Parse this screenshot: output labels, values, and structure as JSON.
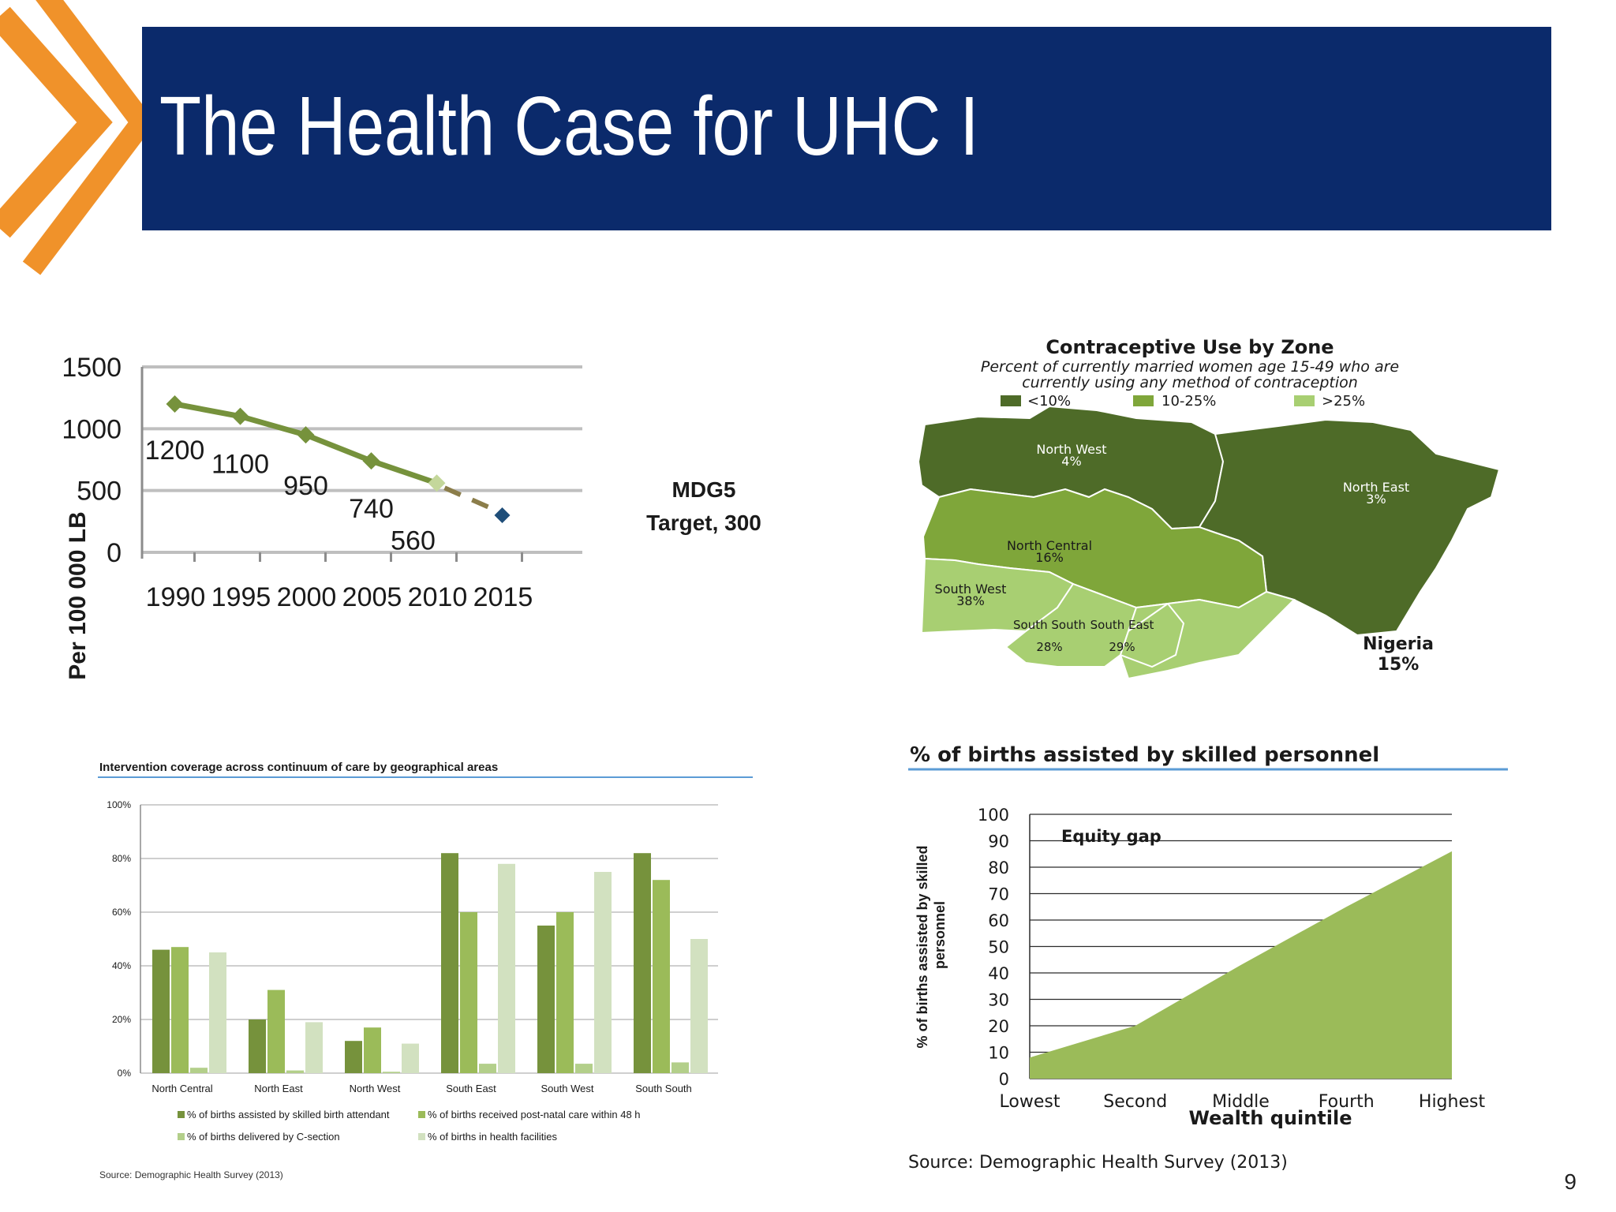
{
  "slide": {
    "title": "The Health Case for UHC I",
    "page_number": "9",
    "colors": {
      "header": "#0b2a6b",
      "chevron": "#f0a030",
      "dark_green": "#4e6b28",
      "mid_green": "#7fa63a",
      "light_green": "#a8cf72",
      "pale_green": "#cfdfbc",
      "target_marker": "#1f4e79"
    }
  },
  "chart_data": [
    {
      "type": "line",
      "title": "",
      "ylabel": "Per 100 000 LB",
      "xlabel": "",
      "ylim": [
        0,
        1500
      ],
      "yticks": [
        "1500",
        "1000",
        "500",
        "0"
      ],
      "ytick_values": [
        1500,
        1000,
        500,
        0
      ],
      "xticks": [
        "1990",
        "1995",
        "2000",
        "2005",
        "2010",
        "2015"
      ],
      "xtick_values": [
        1990,
        1995,
        2000,
        2005,
        2010,
        2015
      ],
      "series": [
        {
          "x": [
            1990,
            1995,
            2000,
            2005,
            2010
          ],
          "y": [
            1200,
            1100,
            950,
            740,
            560
          ],
          "labels": [
            "1200",
            "1100",
            "950",
            "740",
            "560"
          ]
        }
      ],
      "target": {
        "x": 2015,
        "y": 300,
        "label_line1": "MDG5",
        "label_line2": "Target, 300"
      },
      "grid": true
    },
    {
      "type": "map",
      "title": "Contraceptive Use by Zone",
      "subtitle_line1": "Percent of currently married women age 15-49 who are",
      "subtitle_line2": "currently using any method of contraception",
      "legend": [
        {
          "label": "<10%",
          "color": "#4e6b28"
        },
        {
          "label": "10-25%",
          "color": "#7fa63a"
        },
        {
          "label": ">25%",
          "color": "#a8cf72"
        }
      ],
      "regions": [
        {
          "name": "North West",
          "value": "4%",
          "fill": "#4e6b28"
        },
        {
          "name": "North East",
          "value": "3%",
          "fill": "#4e6b28"
        },
        {
          "name": "North Central",
          "value": "16%",
          "fill": "#7fa63a"
        },
        {
          "name": "South West",
          "value": "38%",
          "fill": "#a8cf72"
        },
        {
          "name": "South South",
          "value": "28%",
          "fill": "#a8cf72"
        },
        {
          "name": "South East",
          "value": "29%",
          "fill": "#a8cf72"
        }
      ],
      "country": {
        "name": "Nigeria",
        "value": "15%"
      }
    },
    {
      "type": "bar",
      "title": "Intervention coverage across continuum of care by geographical areas",
      "ylim": [
        0,
        100
      ],
      "yticks": [
        "100%",
        "80%",
        "60%",
        "40%",
        "20%",
        "0%"
      ],
      "ytick_values": [
        100,
        80,
        60,
        40,
        20,
        0
      ],
      "categories": [
        "North Central",
        "North East",
        "North West",
        "South East",
        "South West",
        "South South"
      ],
      "series": [
        {
          "name": "% of births assisted by skilled birth attendant",
          "color": "#76923c",
          "values": [
            46,
            20,
            12,
            82,
            55,
            82
          ]
        },
        {
          "name": "% of births received post-natal care within 48 h",
          "color": "#9bbb59",
          "values": [
            47,
            31,
            17,
            60,
            60,
            72
          ]
        },
        {
          "name": "% of births delivered by C-section",
          "color": "#b3cf8a",
          "values": [
            2,
            1,
            0.5,
            3.5,
            3.5,
            4
          ]
        },
        {
          "name": "% of births in health facilities",
          "color": "#d2e1c0",
          "values": [
            45,
            19,
            11,
            78,
            75,
            50
          ]
        }
      ],
      "grid": true,
      "source": "Source: Demographic Health Survey (2013)"
    },
    {
      "type": "area",
      "title": "% of births assisted by skilled personnel",
      "ylabel_line1": "% of births assisted by skilled",
      "ylabel_line2": "personnel",
      "xlabel": "Wealth quintile",
      "ylim": [
        0,
        100
      ],
      "yticks": [
        "100",
        "90",
        "80",
        "70",
        "60",
        "50",
        "40",
        "30",
        "20",
        "10",
        "0"
      ],
      "ytick_values": [
        100,
        90,
        80,
        70,
        60,
        50,
        40,
        30,
        20,
        10,
        0
      ],
      "categories": [
        "Lowest",
        "Second",
        "Middle",
        "Fourth",
        "Highest"
      ],
      "values": [
        8,
        20,
        43,
        65,
        86
      ],
      "annotation": "Equity gap",
      "color": "#9bbb59",
      "source": "Source: Demographic Health Survey (2013)"
    }
  ]
}
